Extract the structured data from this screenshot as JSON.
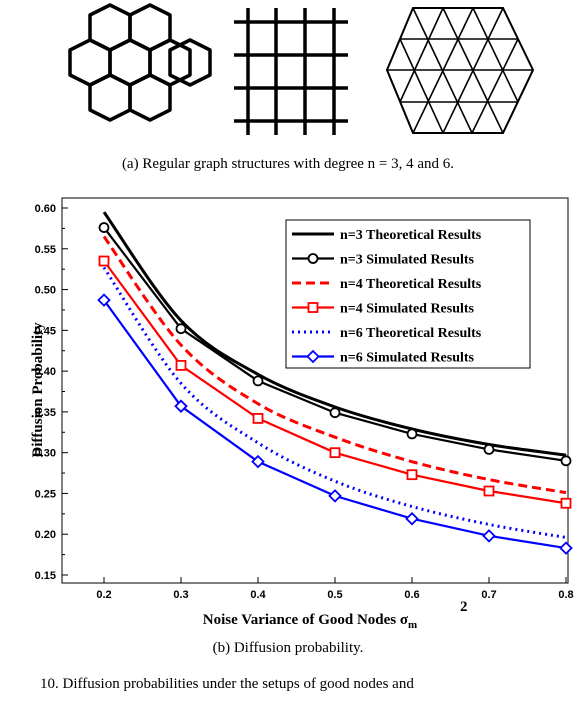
{
  "figure": {
    "panel_a_caption": "(a) Regular graph structures with degree n = 3, 4 and 6.",
    "panel_b_caption": "(b) Diffusion probability.",
    "figure_caption_partial": "10.   Diffusion probabilities under the setups of good nodes and"
  },
  "panel_a": {
    "degrees": [
      3,
      4,
      6
    ],
    "structures": [
      "honeycomb",
      "square-grid",
      "triangular-lattice"
    ]
  },
  "chart_data": {
    "type": "line",
    "xlabel": "Noise Variance of Good Nodes σ_m^2",
    "ylabel": "Diffusion Probability",
    "xlim": [
      0.2,
      0.8
    ],
    "ylim": [
      0.15,
      0.6
    ],
    "xticks": [
      "0.2",
      "0.3",
      "0.4",
      "0.5",
      "0.6",
      "0.7",
      "0.8"
    ],
    "yticks": [
      "0.15",
      "0.20",
      "0.25",
      "0.30",
      "0.35",
      "0.40",
      "0.45",
      "0.50",
      "0.55",
      "0.60"
    ],
    "grid": false,
    "legend_position": "top-right",
    "x": [
      0.2,
      0.3,
      0.4,
      0.5,
      0.6,
      0.7,
      0.8
    ],
    "series": [
      {
        "name": "n=3 Theoretical Results",
        "style": "solid",
        "marker": "none",
        "color": "#000000",
        "values": [
          0.595,
          0.462,
          0.396,
          0.356,
          0.329,
          0.31,
          0.297
        ]
      },
      {
        "name": "n=3 Simulated Results",
        "style": "solid",
        "marker": "circle",
        "color": "#000000",
        "values": [
          0.576,
          0.452,
          0.388,
          0.349,
          0.323,
          0.304,
          0.29
        ]
      },
      {
        "name": "n=4 Theoretical Results",
        "style": "dashed",
        "marker": "none",
        "color": "#ff0000",
        "values": [
          0.565,
          0.432,
          0.36,
          0.319,
          0.289,
          0.267,
          0.251
        ]
      },
      {
        "name": "n=4 Simulated Results",
        "style": "solid",
        "marker": "square",
        "color": "#ff0000",
        "values": [
          0.535,
          0.407,
          0.342,
          0.3,
          0.273,
          0.253,
          0.238
        ]
      },
      {
        "name": "n=6 Theoretical Results",
        "style": "dotted",
        "marker": "none",
        "color": "#0000ff",
        "values": [
          0.527,
          0.385,
          0.312,
          0.265,
          0.234,
          0.212,
          0.196
        ]
      },
      {
        "name": "n=6 Simulated Results",
        "style": "solid",
        "marker": "diamond",
        "color": "#0000ff",
        "values": [
          0.487,
          0.357,
          0.289,
          0.247,
          0.219,
          0.198,
          0.183
        ]
      }
    ]
  }
}
